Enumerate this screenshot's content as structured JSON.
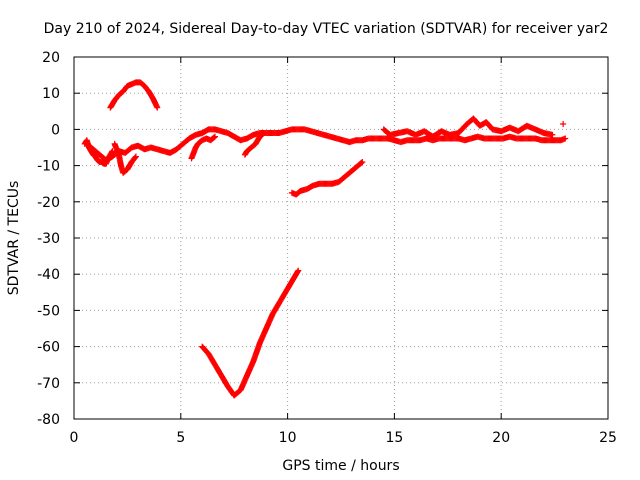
{
  "chart_data": {
    "type": "scatter",
    "title": "Day 210 of 2024, Sidereal Day-to-day VTEC variation (SDTVAR) for receiver yar2",
    "xlabel": "GPS time / hours",
    "ylabel": "SDTVAR / TECUs",
    "xlim": [
      0,
      25
    ],
    "ylim": [
      -80,
      20
    ],
    "xticks": [
      0,
      5,
      10,
      15,
      20,
      25
    ],
    "yticks": [
      -80,
      -70,
      -60,
      -50,
      -40,
      -30,
      -20,
      -10,
      0,
      10,
      20
    ],
    "xtick_labels": [
      "0",
      "5",
      "10",
      "15",
      "20",
      "25"
    ],
    "ytick_labels": [
      "-80",
      "-70",
      "-60",
      "-50",
      "-40",
      "-30",
      "-20",
      "-10",
      "0",
      "10",
      "20"
    ],
    "grid": true,
    "marker_color": "#ff0000",
    "series": [
      {
        "name": "main-track",
        "points": [
          [
            0.6,
            -4
          ],
          [
            0.9,
            -5.5
          ],
          [
            1.2,
            -7
          ],
          [
            1.5,
            -8.5
          ],
          [
            1.8,
            -7.5
          ],
          [
            2.1,
            -6
          ],
          [
            2.4,
            -6.5
          ],
          [
            2.7,
            -5
          ],
          [
            3.0,
            -4.5
          ],
          [
            3.3,
            -5.5
          ],
          [
            3.6,
            -5
          ],
          [
            3.9,
            -5.5
          ],
          [
            4.2,
            -6
          ],
          [
            4.5,
            -6.5
          ],
          [
            4.8,
            -5.5
          ],
          [
            5.1,
            -4
          ],
          [
            5.4,
            -2.5
          ],
          [
            5.7,
            -1.5
          ],
          [
            6.0,
            -1
          ],
          [
            6.3,
            0
          ],
          [
            6.6,
            0
          ],
          [
            6.9,
            -0.5
          ],
          [
            7.2,
            -1
          ],
          [
            7.5,
            -2
          ],
          [
            7.8,
            -3
          ],
          [
            8.1,
            -2.5
          ],
          [
            8.4,
            -1.5
          ],
          [
            8.7,
            -1
          ],
          [
            9.0,
            -1
          ],
          [
            9.3,
            -1
          ],
          [
            9.6,
            -1
          ],
          [
            9.9,
            -0.5
          ],
          [
            10.2,
            0
          ],
          [
            10.5,
            0
          ],
          [
            10.8,
            0
          ],
          [
            11.1,
            -0.5
          ],
          [
            11.4,
            -1
          ],
          [
            11.7,
            -1.5
          ],
          [
            12.0,
            -2
          ],
          [
            12.3,
            -2.5
          ],
          [
            12.6,
            -3
          ],
          [
            12.9,
            -3.5
          ],
          [
            13.2,
            -3
          ],
          [
            13.5,
            -3
          ],
          [
            13.8,
            -2.5
          ],
          [
            14.1,
            -2.5
          ],
          [
            14.4,
            -2.5
          ],
          [
            14.7,
            -2.5
          ],
          [
            15.0,
            -3
          ],
          [
            15.3,
            -3.5
          ],
          [
            15.6,
            -3
          ],
          [
            15.9,
            -3
          ],
          [
            16.2,
            -3
          ],
          [
            16.5,
            -2.5
          ],
          [
            16.8,
            -3
          ],
          [
            17.1,
            -2.5
          ],
          [
            17.4,
            -2.5
          ],
          [
            17.7,
            -2.5
          ],
          [
            18.0,
            -2.5
          ],
          [
            18.3,
            -3
          ],
          [
            18.6,
            -2.5
          ],
          [
            18.9,
            -2
          ],
          [
            19.2,
            -2.5
          ],
          [
            19.5,
            -2.5
          ],
          [
            19.8,
            -2.5
          ],
          [
            20.1,
            -2.5
          ],
          [
            20.4,
            -2
          ],
          [
            20.7,
            -2.5
          ],
          [
            21.0,
            -2.5
          ],
          [
            21.3,
            -2.5
          ],
          [
            21.6,
            -2.5
          ],
          [
            21.9,
            -3
          ],
          [
            22.2,
            -3
          ],
          [
            22.5,
            -3
          ],
          [
            22.8,
            -3
          ],
          [
            23.0,
            -2.5
          ]
        ]
      },
      {
        "name": "early-bump",
        "points": [
          [
            1.7,
            6
          ],
          [
            1.9,
            8
          ],
          [
            2.1,
            9.5
          ],
          [
            2.3,
            10.5
          ],
          [
            2.5,
            12
          ],
          [
            2.7,
            12.5
          ],
          [
            2.9,
            13
          ],
          [
            3.1,
            13
          ],
          [
            3.3,
            12
          ],
          [
            3.5,
            10.5
          ],
          [
            3.7,
            8.5
          ],
          [
            3.9,
            6
          ]
        ]
      },
      {
        "name": "early-dip",
        "points": [
          [
            1.9,
            -4
          ],
          [
            2.1,
            -7
          ],
          [
            2.2,
            -10
          ],
          [
            2.3,
            -12
          ],
          [
            2.5,
            -11
          ],
          [
            2.7,
            -9
          ],
          [
            2.9,
            -7.5
          ]
        ]
      },
      {
        "name": "oscillation-early",
        "points": [
          [
            0.5,
            -4
          ],
          [
            0.6,
            -3
          ],
          [
            0.7,
            -5
          ],
          [
            0.8,
            -6
          ],
          [
            0.9,
            -7
          ],
          [
            1.0,
            -7.5
          ],
          [
            1.1,
            -8.5
          ],
          [
            1.2,
            -9
          ],
          [
            1.3,
            -9
          ],
          [
            1.4,
            -9.5
          ],
          [
            1.5,
            -9.5
          ],
          [
            1.6,
            -8
          ],
          [
            1.7,
            -7
          ],
          [
            1.8,
            -6
          ]
        ]
      },
      {
        "name": "spike-5-6",
        "points": [
          [
            5.5,
            -8
          ],
          [
            5.6,
            -6.5
          ],
          [
            5.7,
            -5
          ],
          [
            5.8,
            -4
          ],
          [
            6.0,
            -3
          ],
          [
            6.2,
            -2.5
          ],
          [
            6.4,
            -3
          ],
          [
            6.6,
            -2
          ]
        ]
      },
      {
        "name": "spike-8",
        "points": [
          [
            8.0,
            -7
          ],
          [
            8.1,
            -6
          ],
          [
            8.3,
            -5
          ],
          [
            8.5,
            -4
          ],
          [
            8.7,
            -2
          ],
          [
            8.9,
            -1
          ]
        ]
      },
      {
        "name": "mid-branch",
        "points": [
          [
            10.2,
            -17.5
          ],
          [
            10.4,
            -18
          ],
          [
            10.6,
            -17
          ],
          [
            10.9,
            -16.5
          ],
          [
            11.2,
            -15.5
          ],
          [
            11.5,
            -15
          ],
          [
            11.8,
            -15
          ],
          [
            12.1,
            -15
          ],
          [
            12.4,
            -14.5
          ],
          [
            12.7,
            -13
          ],
          [
            13.0,
            -11.5
          ],
          [
            13.3,
            -10
          ],
          [
            13.5,
            -9
          ]
        ]
      },
      {
        "name": "v-track",
        "points": [
          [
            6.0,
            -60
          ],
          [
            6.3,
            -62
          ],
          [
            6.6,
            -65
          ],
          [
            6.9,
            -68
          ],
          [
            7.2,
            -71
          ],
          [
            7.5,
            -73.5
          ],
          [
            7.8,
            -72
          ],
          [
            8.1,
            -68
          ],
          [
            8.4,
            -64
          ],
          [
            8.7,
            -59
          ],
          [
            9.0,
            -55
          ],
          [
            9.3,
            -51
          ],
          [
            9.6,
            -48
          ],
          [
            9.9,
            -45
          ],
          [
            10.2,
            -42
          ],
          [
            10.5,
            -39
          ]
        ]
      },
      {
        "name": "wiggles-late",
        "points": [
          [
            14.5,
            0
          ],
          [
            14.8,
            -1.5
          ],
          [
            15.2,
            -1
          ],
          [
            15.6,
            -0.5
          ],
          [
            16.0,
            -1.5
          ],
          [
            16.4,
            -0.5
          ],
          [
            16.8,
            -2
          ],
          [
            17.2,
            -0.5
          ],
          [
            17.6,
            -1.5
          ],
          [
            18.0,
            -1
          ],
          [
            18.4,
            1.5
          ],
          [
            18.7,
            3
          ],
          [
            19.0,
            1
          ],
          [
            19.3,
            2
          ],
          [
            19.6,
            0
          ],
          [
            20.0,
            -0.5
          ],
          [
            20.4,
            0.5
          ],
          [
            20.8,
            -0.5
          ],
          [
            21.2,
            1
          ],
          [
            21.6,
            0
          ],
          [
            22.0,
            -1
          ],
          [
            22.4,
            -1.5
          ]
        ]
      },
      {
        "name": "outlier",
        "points": [
          [
            22.9,
            1.5
          ]
        ]
      }
    ]
  }
}
